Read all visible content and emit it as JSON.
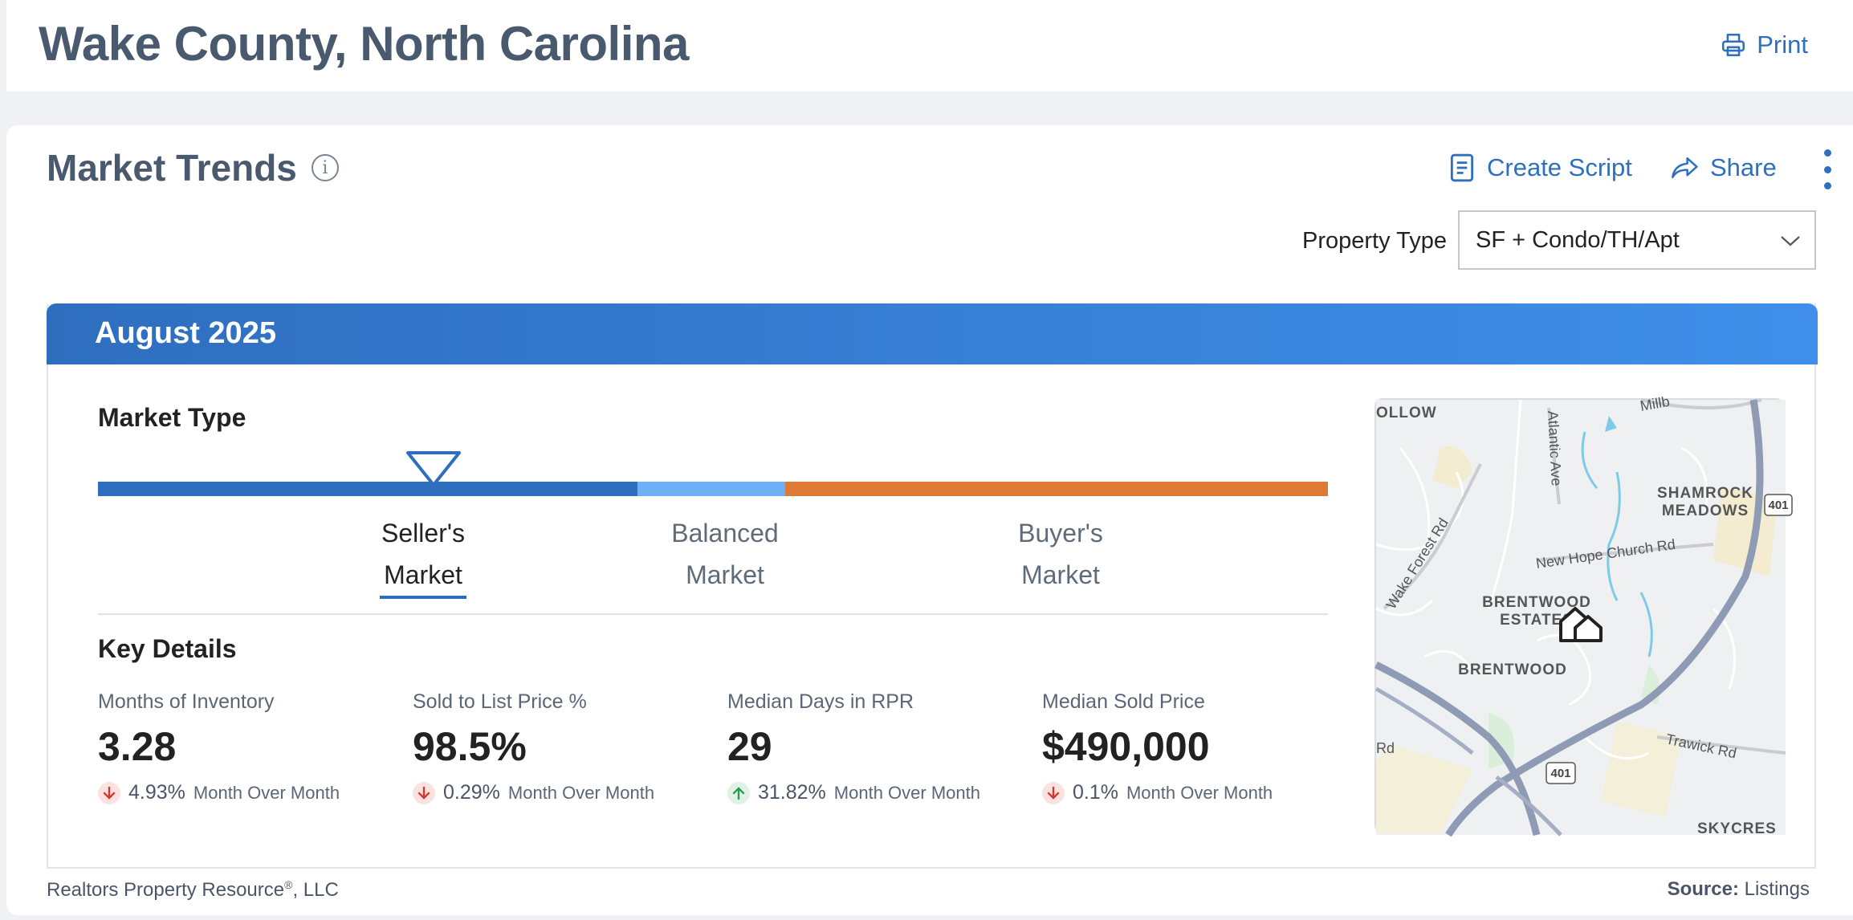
{
  "header": {
    "title": "Wake County, North Carolina",
    "print_label": "Print"
  },
  "card": {
    "title": "Market Trends",
    "create_script_label": "Create Script",
    "share_label": "Share",
    "property_type_label": "Property Type",
    "property_type_value": "SF + Condo/TH/Apt"
  },
  "panel": {
    "period": "August 2025",
    "market_type_label": "Market Type",
    "market_position_pct": 27.3,
    "markets": [
      {
        "line1": "Seller's",
        "line2": "Market",
        "active": true
      },
      {
        "line1": "Balanced",
        "line2": "Market",
        "active": false
      },
      {
        "line1": "Buyer's",
        "line2": "Market",
        "active": false
      }
    ],
    "key_details_label": "Key Details",
    "metrics": [
      {
        "label": "Months of Inventory",
        "value": "3.28",
        "change": "4.93%",
        "direction": "down",
        "period": "Month Over Month"
      },
      {
        "label": "Sold to List Price %",
        "value": "98.5%",
        "change": "0.29%",
        "direction": "down",
        "period": "Month Over Month"
      },
      {
        "label": "Median Days in RPR",
        "value": "29",
        "change": "31.82%",
        "direction": "up",
        "period": "Month Over Month"
      },
      {
        "label": "Median Sold Price",
        "value": "$490,000",
        "change": "0.1%",
        "direction": "down",
        "period": "Month Over Month"
      }
    ]
  },
  "map": {
    "labels": {
      "hollow": "OLLOW",
      "atlantic": "Atlantic Ave",
      "shamrock1": "SHAMROCK",
      "shamrock2": "MEADOWS",
      "wake_forest": "Wake Forest Rd",
      "new_hope": "New Hope Church Rd",
      "brentwood_est1": "BRENTWOOD",
      "brentwood_est2": "ESTATES",
      "brentwood": "BRENTWOOD",
      "trawick": "Trawick Rd",
      "skycrest": "SKYCRES",
      "route_401a": "401",
      "route_401b": "401",
      "millbrook": "Millb",
      "rd": "Rd"
    }
  },
  "footer": {
    "company": "Realtors Property Resource",
    "company_suffix": ", LLC",
    "source_label": "Source:",
    "source_value": "Listings"
  }
}
